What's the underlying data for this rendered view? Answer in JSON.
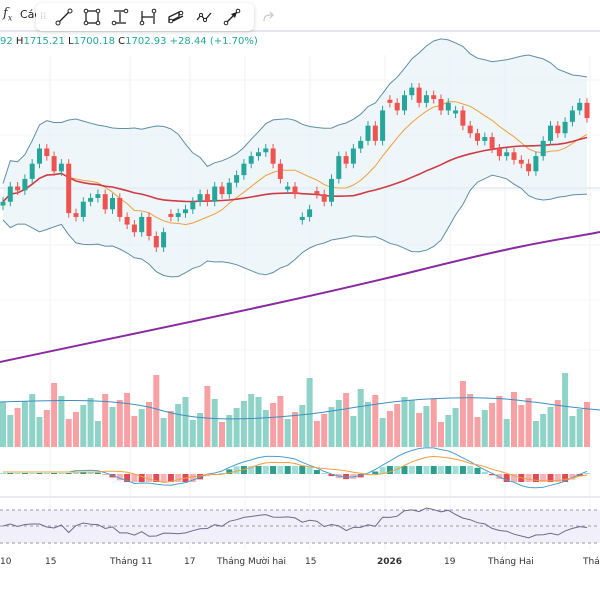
{
  "header": {
    "fx_label": "f",
    "fx_sub": "x",
    "title_cut": "Các",
    "toolbar": {
      "tools": [
        "trend-line-icon",
        "rectangle-icon",
        "price-range-icon",
        "date-range-icon",
        "parallel-channel-icon",
        "path-icon",
        "arrow-icon"
      ],
      "redo_icon": "redo-icon"
    }
  },
  "ohlc": {
    "open_partial": "92",
    "high_label": "H",
    "high": "1715.21",
    "low_label": "L",
    "low": "1700.18",
    "close_label": "C",
    "close": "1702.93",
    "change": "+28.44 (+1.70%)"
  },
  "colors": {
    "up": "#26a69a",
    "down": "#ef5350",
    "vol_up": "#8fd3c8",
    "vol_down": "#f7a1a5",
    "bb": "#5e8fa8",
    "ma_fast": "#f0a040",
    "ma_mid": "#d03a44",
    "ma_slow": "#8a2aa0",
    "rsi": "#6e6a8a"
  },
  "chart_data": {
    "type": "candlestick",
    "x_labels": [
      "10",
      "15",
      "Tháng 11",
      "17",
      "Tháng Mười hai",
      "15",
      "2026",
      "19",
      "Tháng Hai",
      "Thá"
    ],
    "x_labels_bold": [
      "2026"
    ],
    "price_panel": {
      "candles_dir": "u,u,d,u,u,u,d,d,u,d,d,u,u,u,d,u,d,d,d,u,d,d,u,d,u,u,u,u,d,u,d,u,u,u,u,u,u,d,d,u,d,u,u,d,d,u,u,d,u,u,u,d,u,d,d,u,u,d,u,d,d,u,u,d,d,d,u,d,d,u,d,d,d,u,u,u,d,u,u,u,d",
      "closes": [
        1640,
        1660,
        1655,
        1670,
        1690,
        1710,
        1700,
        1680,
        1690,
        1625,
        1620,
        1640,
        1645,
        1650,
        1630,
        1645,
        1620,
        1610,
        1600,
        1620,
        1595,
        1580,
        1600,
        1620,
        1625,
        1630,
        1640,
        1650,
        1640,
        1660,
        1650,
        1665,
        1675,
        1690,
        1700,
        1705,
        1710,
        1690,
        1670,
        1660,
        1650,
        1620,
        1630,
        1650,
        1640,
        1670,
        1700,
        1690,
        1710,
        1720,
        1740,
        1720,
        1760,
        1770,
        1760,
        1780,
        1790,
        1770,
        1780,
        1775,
        1760,
        1770,
        1760,
        1740,
        1730,
        1720,
        1725,
        1710,
        1700,
        1705,
        1695,
        1690,
        1680,
        1700,
        1720,
        1740,
        1730,
        1745,
        1760,
        1770,
        1750
      ]
    },
    "volume_panel": {
      "note": "volume bars colored by candle direction with moving average line"
    },
    "macd_panel": {
      "note": "MACD line, signal line, and histogram"
    },
    "rsi_panel": {
      "levels": [
        70,
        50,
        30
      ]
    }
  }
}
